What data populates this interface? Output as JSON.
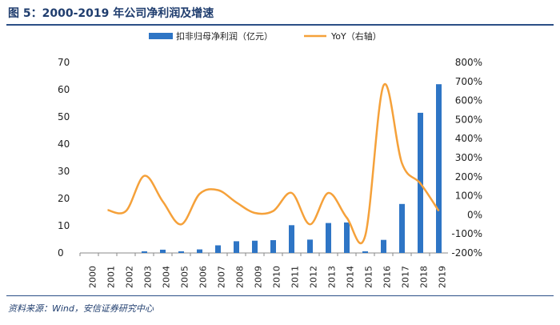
{
  "header": {
    "title": "图 5：2000-2019 年公司净利润及增速"
  },
  "source": {
    "text": "资料来源：Wind，安信证券研究中心"
  },
  "chart_data": {
    "type": "bar+line",
    "title": "图 5：2000-2019 年公司净利润及增速",
    "categories": [
      "2000",
      "2001",
      "2002",
      "2003",
      "2004",
      "2005",
      "2006",
      "2007",
      "2008",
      "2009",
      "2010",
      "2011",
      "2012",
      "2013",
      "2014",
      "2015",
      "2016",
      "2017",
      "2018",
      "2019"
    ],
    "series": [
      {
        "name": "扣非归母净利润（亿元）",
        "type": "bar",
        "axis": "left",
        "color": "#2e75c5",
        "values": [
          0,
          0,
          0,
          0.6,
          1.2,
          0.6,
          1.3,
          2.8,
          4.3,
          4.5,
          4.7,
          10.2,
          4.9,
          11.0,
          11.2,
          0.6,
          4.8,
          18.0,
          51.5,
          62.0
        ]
      },
      {
        "name": "YoY（右轴）",
        "type": "line",
        "axis": "right",
        "color": "#f5a13a",
        "values": [
          null,
          25,
          20,
          205,
          70,
          -50,
          110,
          130,
          65,
          10,
          20,
          115,
          -50,
          115,
          -15,
          -110,
          680,
          270,
          165,
          20
        ]
      }
    ],
    "y_left": {
      "min": 0,
      "max": 70,
      "ticks": [
        "0",
        "10",
        "20",
        "30",
        "40",
        "50",
        "60",
        "70"
      ]
    },
    "y_right": {
      "min": -200,
      "max": 800,
      "ticks": [
        "-200%",
        "-100%",
        "0%",
        "100%",
        "200%",
        "300%",
        "400%",
        "500%",
        "600%",
        "700%",
        "800%"
      ]
    },
    "legend": {
      "position": "top",
      "entries": [
        "扣非归母净利润（亿元）",
        "YoY（右轴）"
      ]
    },
    "grid": false
  }
}
